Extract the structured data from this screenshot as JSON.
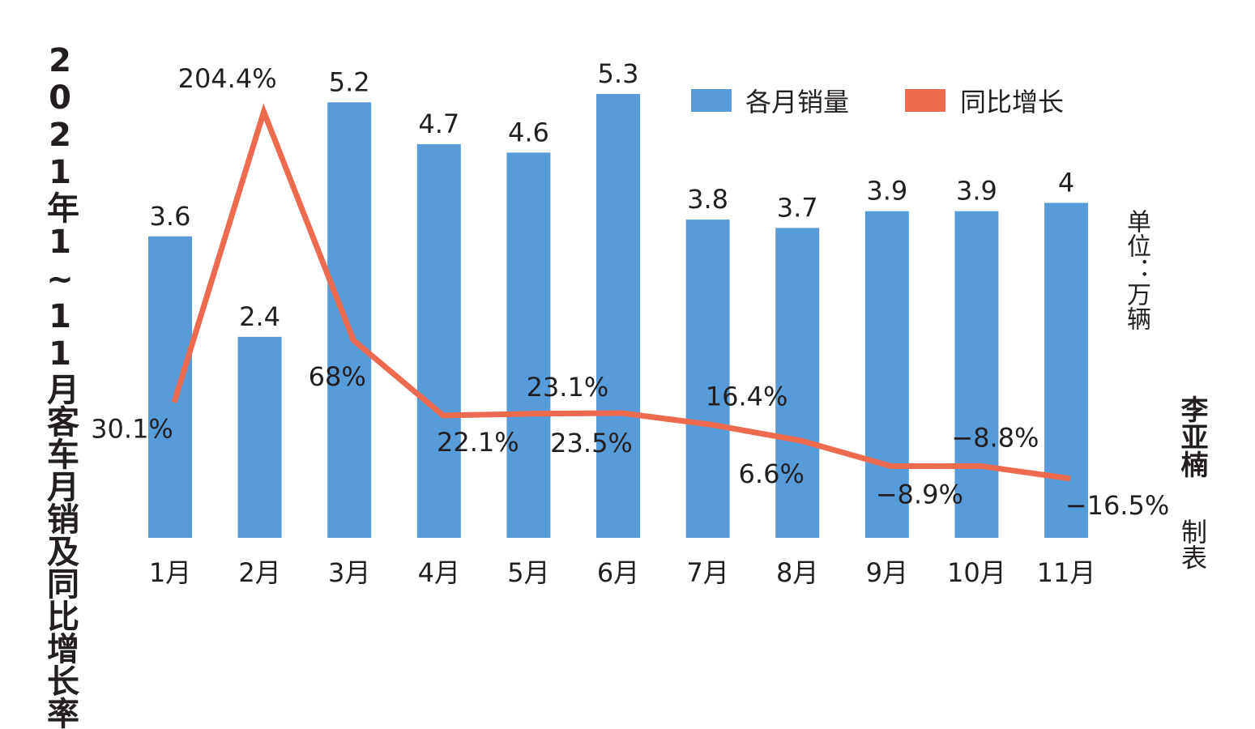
{
  "title": "2021年1~11月客车月销及同比增长率",
  "unit_label": "单位：万辆",
  "author": "李亚楠",
  "author_role": "制表",
  "colors": {
    "bar": "#579cd9",
    "line": "#ed6a4f",
    "text": "#231f20"
  },
  "chart_data": {
    "type": "bar",
    "categories": [
      "1月",
      "2月",
      "3月",
      "4月",
      "5月",
      "6月",
      "7月",
      "8月",
      "9月",
      "10月",
      "11月"
    ],
    "series": [
      {
        "name": "各月销量",
        "type": "bar",
        "values": [
          3.6,
          2.4,
          5.2,
          4.7,
          4.6,
          5.3,
          3.8,
          3.7,
          3.9,
          3.9,
          4
        ],
        "labels": [
          "3.6",
          "2.4",
          "5.2",
          "4.7",
          "4.6",
          "5.3",
          "3.8",
          "3.7",
          "3.9",
          "3.9",
          "4"
        ]
      },
      {
        "name": "同比增长",
        "type": "line",
        "values": [
          30.1,
          204.4,
          68,
          22.1,
          23.1,
          23.5,
          16.4,
          6.6,
          -8.9,
          -8.8,
          -16.5
        ],
        "labels": [
          "30.1%",
          "204.4%",
          "68%",
          "22.1%",
          "23.1%",
          "23.5%",
          "16.4%",
          "6.6%",
          "−8.9%",
          "−8.8%",
          "−16.5%"
        ]
      }
    ],
    "legend": [
      "各月销量",
      "同比增长"
    ],
    "legend_position": "top-right",
    "grid": false
  }
}
